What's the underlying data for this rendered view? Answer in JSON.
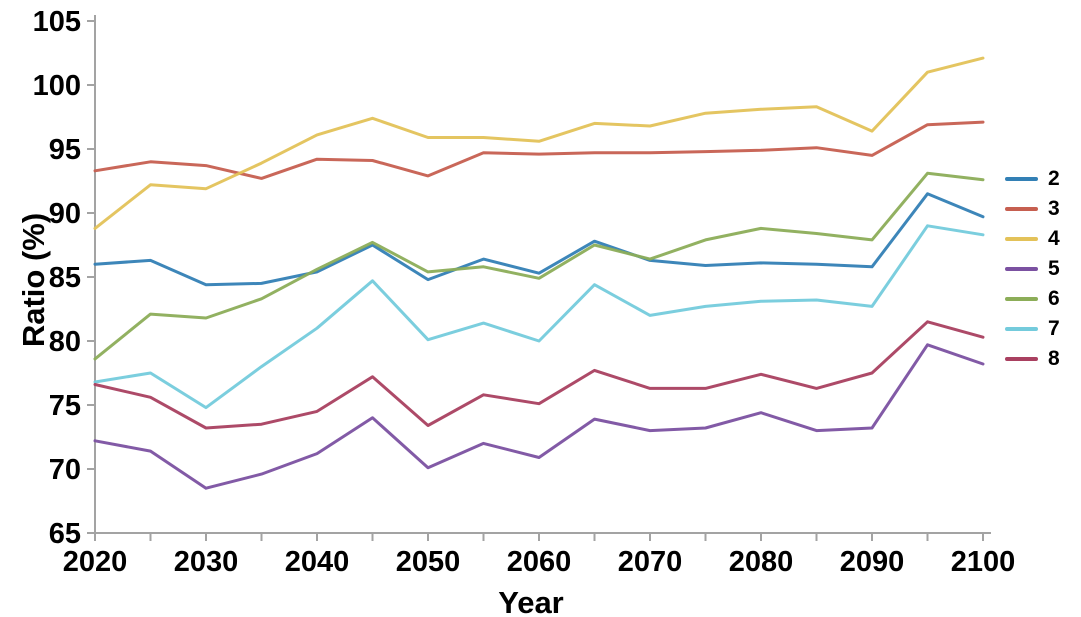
{
  "chart_data": {
    "type": "line",
    "title": "",
    "xlabel": "Year",
    "ylabel": "Ratio (%)",
    "xlim": [
      2020,
      2100
    ],
    "ylim": [
      65,
      105
    ],
    "grid": false,
    "legend_position": "right-outside",
    "axis_color": "#a3a3a3",
    "x": [
      2020,
      2025,
      2030,
      2035,
      2040,
      2045,
      2050,
      2055,
      2060,
      2065,
      2070,
      2075,
      2080,
      2085,
      2090,
      2095,
      2100
    ],
    "xtick_labels": [
      "2020",
      "2030",
      "2040",
      "2050",
      "2060",
      "2070",
      "2080",
      "2090",
      "2100"
    ],
    "xtick_values": [
      2020,
      2030,
      2040,
      2050,
      2060,
      2070,
      2080,
      2090,
      2100
    ],
    "ytick_labels": [
      "65",
      "70",
      "75",
      "80",
      "85",
      "90",
      "95",
      "100",
      "105"
    ],
    "ytick_values": [
      65,
      70,
      75,
      80,
      85,
      90,
      95,
      100,
      105
    ],
    "series": [
      {
        "name": "2",
        "color": "#3380b5",
        "values": [
          86.0,
          86.3,
          84.4,
          84.5,
          85.4,
          87.5,
          84.8,
          86.4,
          85.3,
          87.8,
          86.3,
          85.9,
          86.1,
          86.0,
          85.8,
          91.5,
          89.7
        ]
      },
      {
        "name": "3",
        "color": "#c65f50",
        "values": [
          93.3,
          94.0,
          93.7,
          92.7,
          94.2,
          94.1,
          92.9,
          94.7,
          94.6,
          94.7,
          94.7,
          94.8,
          94.9,
          95.1,
          94.5,
          96.9,
          97.1
        ]
      },
      {
        "name": "4",
        "color": "#e3c259",
        "values": [
          88.8,
          92.2,
          91.9,
          93.9,
          96.1,
          97.4,
          95.9,
          95.9,
          95.6,
          97.0,
          96.8,
          97.8,
          98.1,
          98.3,
          96.4,
          101.0,
          102.1
        ]
      },
      {
        "name": "5",
        "color": "#7b51a1",
        "values": [
          72.2,
          71.4,
          68.5,
          69.6,
          71.2,
          74.0,
          70.1,
          72.0,
          70.9,
          73.9,
          73.0,
          73.2,
          74.4,
          73.0,
          73.2,
          79.7,
          78.2
        ]
      },
      {
        "name": "6",
        "color": "#8cad58",
        "values": [
          78.6,
          82.1,
          81.8,
          83.3,
          85.6,
          87.7,
          85.4,
          85.8,
          84.9,
          87.5,
          86.4,
          87.9,
          88.8,
          88.4,
          87.9,
          93.1,
          92.6
        ]
      },
      {
        "name": "7",
        "color": "#74cbdc",
        "values": [
          76.8,
          77.5,
          74.8,
          78.0,
          81.0,
          84.7,
          80.1,
          81.4,
          80.0,
          84.4,
          82.0,
          82.7,
          83.1,
          83.2,
          82.7,
          89.0,
          88.3
        ]
      },
      {
        "name": "8",
        "color": "#a94060",
        "values": [
          76.6,
          75.6,
          73.2,
          73.5,
          74.5,
          77.2,
          73.4,
          75.8,
          75.1,
          77.7,
          76.3,
          76.3,
          77.4,
          76.3,
          77.5,
          81.5,
          80.3
        ]
      }
    ]
  }
}
